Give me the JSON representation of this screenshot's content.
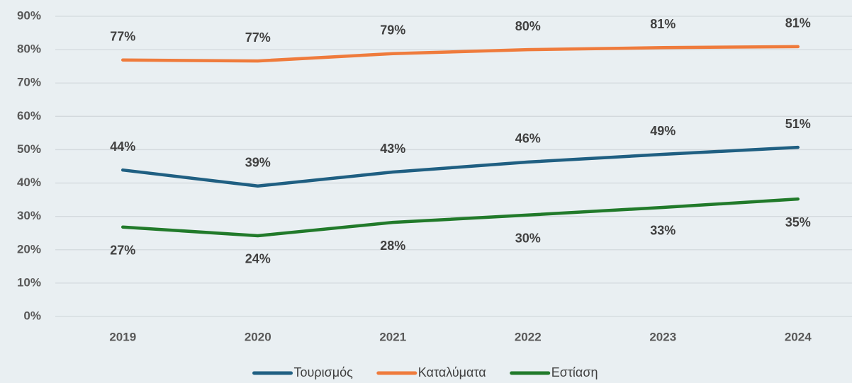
{
  "chart_data": {
    "type": "line",
    "categories": [
      "2019",
      "2020",
      "2021",
      "2022",
      "2023",
      "2024"
    ],
    "series": [
      {
        "name": "Τουρισμός",
        "color": "#1f5f82",
        "values": [
          43.9,
          39.1,
          43.3,
          46.3,
          48.6,
          50.7
        ],
        "value_labels": [
          "44%",
          "39%",
          "43%",
          "46%",
          "49%",
          "51%"
        ]
      },
      {
        "name": "Καταλύματα",
        "color": "#ef7b3c",
        "values": [
          76.9,
          76.6,
          78.8,
          80.0,
          80.6,
          80.9
        ],
        "value_labels": [
          "77%",
          "77%",
          "79%",
          "80%",
          "81%",
          "81%"
        ]
      },
      {
        "name": "Εστίαση",
        "color": "#217a2a",
        "values": [
          26.8,
          24.2,
          28.2,
          30.4,
          32.7,
          35.2
        ],
        "value_labels": [
          "27%",
          "24%",
          "28%",
          "30%",
          "33%",
          "35%"
        ]
      }
    ],
    "ylim": [
      0,
      90
    ],
    "yticks": [
      {
        "value": 0,
        "label": "0%"
      },
      {
        "value": 10,
        "label": "10%"
      },
      {
        "value": 20,
        "label": "20%"
      },
      {
        "value": 30,
        "label": "30%"
      },
      {
        "value": 40,
        "label": "40%"
      },
      {
        "value": 50,
        "label": "50%"
      },
      {
        "value": 60,
        "label": "60%"
      },
      {
        "value": 70,
        "label": "70%"
      },
      {
        "value": 80,
        "label": "80%"
      },
      {
        "value": 90,
        "label": "90%"
      }
    ],
    "grid": true,
    "legend": "bottom"
  }
}
